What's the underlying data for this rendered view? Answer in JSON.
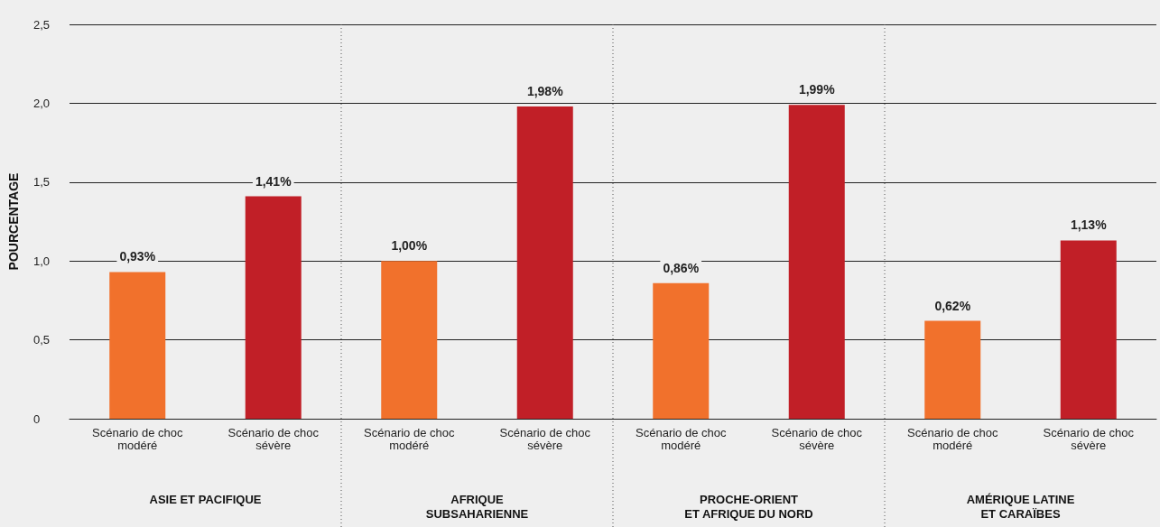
{
  "chart_data": {
    "type": "bar",
    "ylabel": "POURCENTAGE",
    "categories": [
      "Scénario de choc\nmodéré",
      "Scénario de choc\nsévère",
      "Scénario de choc\nmodéré",
      "Scénario de choc\nsévère",
      "Scénario de choc\nmodéré",
      "Scénario de choc\nsévère",
      "Scénario de choc\nmodéré",
      "Scénario de choc\nsévère"
    ],
    "values": [
      0.93,
      1.41,
      1.0,
      1.98,
      0.86,
      1.99,
      0.62,
      1.13
    ],
    "colors": [
      "#f1712c",
      "#c11f27",
      "#f1712c",
      "#c11f27",
      "#f1712c",
      "#c11f27",
      "#f1712c",
      "#c11f27"
    ],
    "value_labels": [
      "0,93%",
      "1,41%",
      "1,00%",
      "1,98%",
      "0,86%",
      "1,99%",
      "0,62%",
      "1,13%"
    ],
    "annotations": [
      "ASIE ET PACIFIQUE",
      "AFRIQUE\nSUBSAHARIENNE",
      "PROCHE-ORIENT\nET AFRIQUE DU NORD",
      "AMÉRIQUE LATINE\nET CARAÏBES"
    ],
    "ylim": [
      0,
      2.5
    ],
    "yticks": [
      0,
      {
        "value": 0.5,
        "label": "0,5"
      },
      {
        "value": 1,
        "label": "1,0"
      },
      {
        "value": 1.5,
        "label": "1,5"
      },
      {
        "value": 2,
        "label": "2,0"
      },
      {
        "value": 2.5,
        "label": "2,5"
      }
    ],
    "grid": "y"
  }
}
